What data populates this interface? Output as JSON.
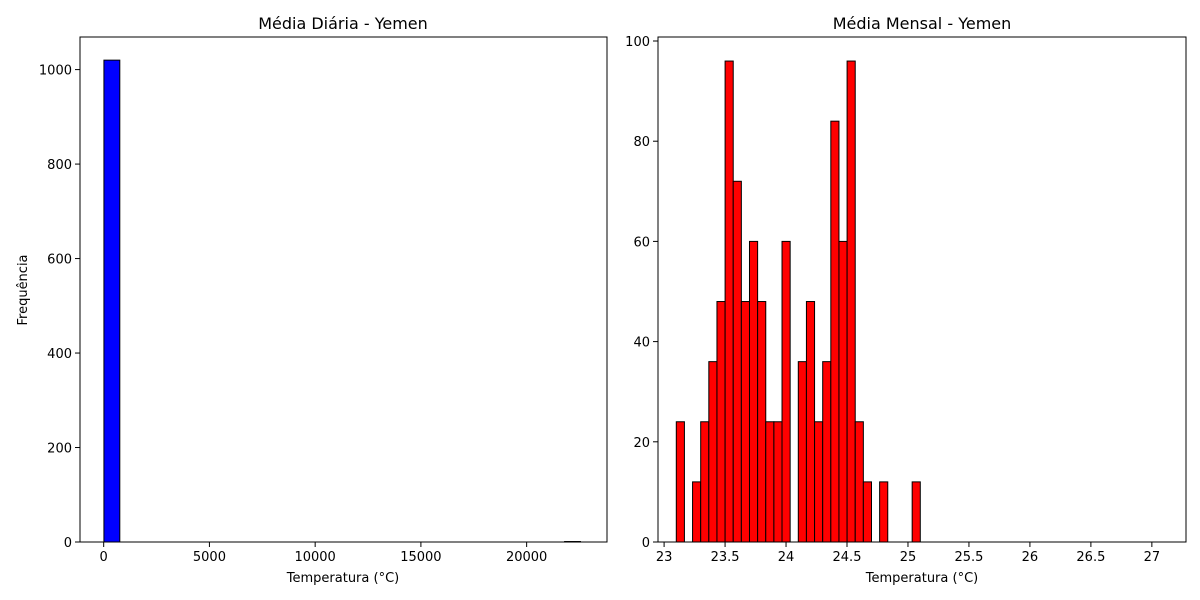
{
  "chart_data": [
    {
      "type": "bar",
      "title": "Média Diária - Yemen",
      "xlabel": "Temperatura (°C)",
      "ylabel": "Frequência",
      "bar_color": "#0000ff",
      "edge_color": "#000000",
      "xlim": [
        -1120,
        23800
      ],
      "ylim": [
        0,
        1069
      ],
      "xticks": [
        0,
        5000,
        10000,
        15000,
        20000
      ],
      "yticks": [
        0,
        200,
        400,
        600,
        800,
        1000
      ],
      "bins": [
        {
          "start": 11,
          "end": 762,
          "count": 1020
        },
        {
          "start": 21795,
          "end": 22546,
          "count": 1
        }
      ],
      "grid": false
    },
    {
      "type": "bar",
      "title": "Média Mensal - Yemen",
      "xlabel": "Temperatura (°C)",
      "ylabel": "",
      "bar_color": "#ff0000",
      "edge_color": "#000000",
      "xlim": [
        22.95,
        27.28
      ],
      "ylim": [
        0,
        100.8
      ],
      "xticks": [
        23.0,
        23.5,
        24.0,
        24.5,
        25.0,
        25.5,
        26.0,
        26.5,
        27.0
      ],
      "yticks": [
        0,
        20,
        40,
        60,
        80,
        100
      ],
      "bin_start": 23.1,
      "bin_width": 0.0667,
      "counts": [
        24,
        0,
        12,
        24,
        36,
        48,
        96,
        72,
        48,
        60,
        48,
        24,
        24,
        60,
        0,
        36,
        48,
        24,
        36,
        84,
        60,
        96,
        24,
        12,
        0,
        12,
        0,
        0,
        0,
        12
      ],
      "grid": false
    }
  ]
}
